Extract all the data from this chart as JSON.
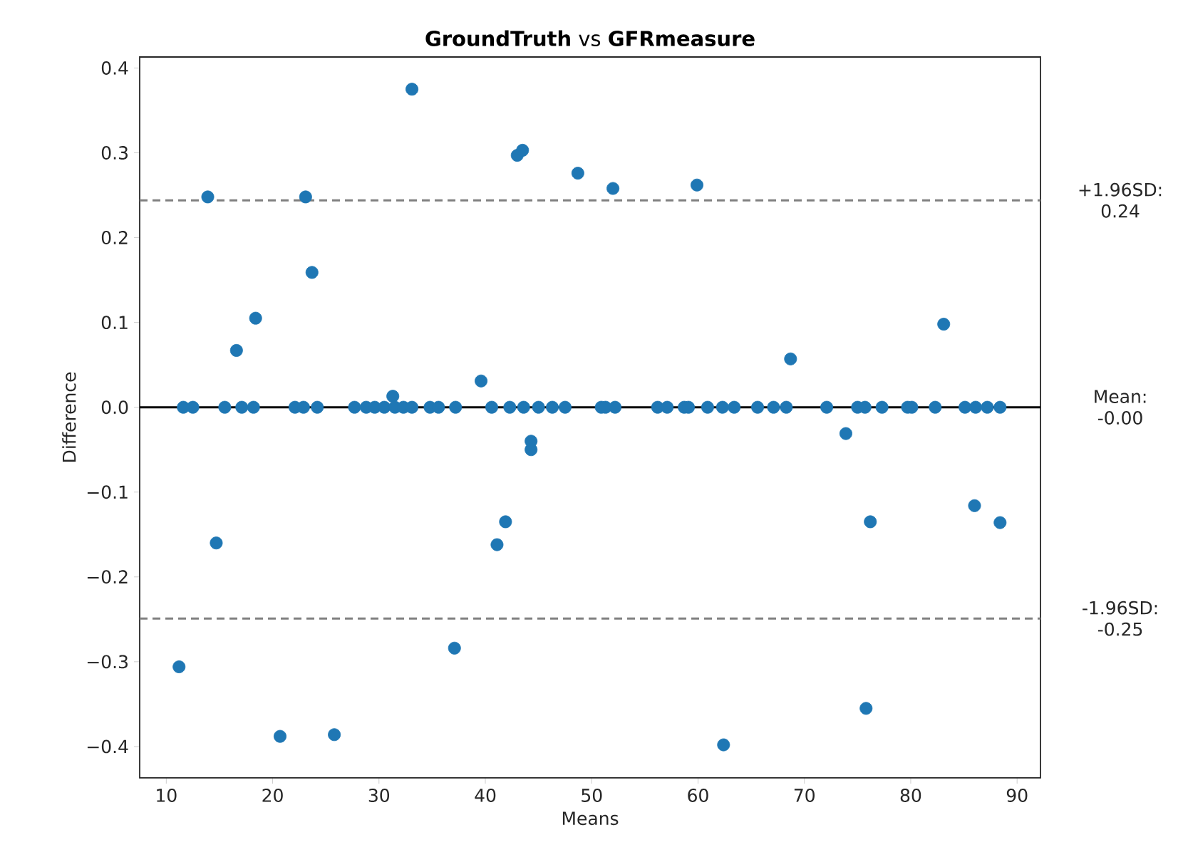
{
  "chart_data": {
    "type": "scatter",
    "title": "**GroundTruth** vs **GFRmeasure**",
    "xlabel": "Means",
    "ylabel": "Difference",
    "xlim": [
      7.5,
      92.2
    ],
    "ylim": [
      -0.437,
      0.413
    ],
    "xticks": [
      10,
      20,
      30,
      40,
      50,
      60,
      70,
      80,
      90
    ],
    "yticks": [
      {
        "value": -0.4,
        "label": "−0.4"
      },
      {
        "value": -0.3,
        "label": "−0.3"
      },
      {
        "value": -0.2,
        "label": "−0.2"
      },
      {
        "value": -0.1,
        "label": "−0.1"
      },
      {
        "value": 0,
        "label": "0.0"
      },
      {
        "value": 0.1,
        "label": "0.1"
      },
      {
        "value": 0.2,
        "label": "0.2"
      },
      {
        "value": 0.3,
        "label": "0.3"
      },
      {
        "value": 0.4,
        "label": "0.4"
      }
    ],
    "marker": "circle",
    "series": [
      {
        "color": "#1f77b4",
        "x": [
          11.2,
          13.9,
          14.7,
          16.6,
          18.4,
          20.7,
          23.1,
          23.7,
          25.8,
          31.3,
          33.1,
          37.1,
          39.6,
          41.1,
          41.9,
          43.0,
          43.5,
          44.3,
          44.3,
          48.7,
          52.0,
          59.9,
          62.4,
          68.7,
          73.9,
          75.8,
          76.2,
          83.1,
          86.0,
          88.4,
          11.6,
          12.5,
          15.5,
          17.1,
          18.2,
          22.1,
          22.9,
          24.2,
          27.7,
          28.8,
          29.6,
          30.5,
          31.5,
          32.3,
          33.1,
          34.8,
          35.6,
          37.2,
          40.6,
          42.3,
          43.6,
          45.0,
          46.3,
          47.5,
          50.9,
          51.3,
          52.2,
          56.2,
          57.1,
          58.7,
          59.1,
          60.9,
          62.3,
          63.4,
          65.6,
          67.1,
          68.3,
          72.1,
          75.0,
          75.7,
          77.3,
          79.7,
          80.1,
          82.3,
          85.1,
          86.1,
          87.2,
          88.4
        ],
        "values": [
          -0.306,
          0.248,
          -0.16,
          0.067,
          0.105,
          -0.388,
          0.248,
          0.159,
          -0.386,
          0.013,
          0.375,
          -0.284,
          0.031,
          -0.162,
          -0.135,
          0.297,
          0.303,
          -0.04,
          -0.05,
          0.276,
          0.258,
          0.262,
          -0.398,
          0.057,
          -0.031,
          -0.355,
          -0.135,
          0.098,
          -0.116,
          -0.136,
          0,
          0,
          0,
          0,
          0,
          0,
          0,
          0,
          0,
          0,
          0,
          0,
          0,
          0,
          0,
          0,
          0,
          0,
          0,
          0,
          0,
          0,
          0,
          0,
          0,
          0,
          0,
          0,
          0,
          0,
          0,
          0,
          0,
          0,
          0,
          0,
          0,
          0,
          0,
          0,
          0,
          0,
          0,
          0,
          0,
          0,
          0,
          0
        ]
      }
    ],
    "ref_lines": [
      {
        "axis": "y",
        "value": 0.244,
        "label": "+1.96SD: 0.24",
        "color": "#808080",
        "line_style": "dashed"
      },
      {
        "axis": "y",
        "value": 0,
        "label": "Mean: -0.00",
        "color": "#000000",
        "line_style": "solid"
      },
      {
        "axis": "y",
        "value": -0.249,
        "label": "-1.96SD: -0.25",
        "color": "#808080",
        "line_style": "dashed"
      }
    ]
  }
}
